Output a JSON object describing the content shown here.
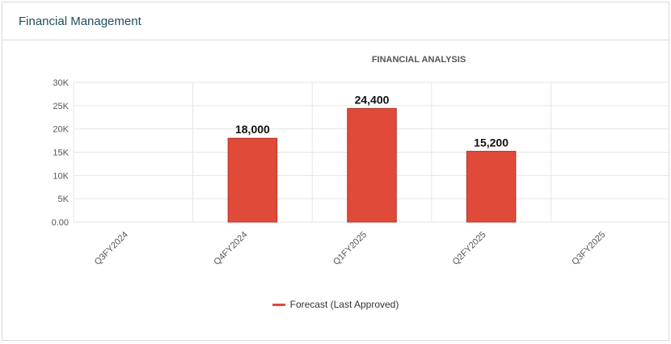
{
  "panel": {
    "title": "Financial Management"
  },
  "chart_data": {
    "type": "bar",
    "title": "FINANCIAL ANALYSIS",
    "categories": [
      "Q3FY2024",
      "Q4FY2024",
      "Q1FY2025",
      "Q2FY2025",
      "Q3FY2025"
    ],
    "series": [
      {
        "name": "Forecast (Last Approved)",
        "values": [
          null,
          18000,
          24400,
          15200,
          null
        ],
        "color": "#e04a39"
      }
    ],
    "data_labels": [
      "",
      "18,000",
      "24,400",
      "15,200",
      ""
    ],
    "yticks": [
      "0.00",
      "5K",
      "10K",
      "15K",
      "20K",
      "25K",
      "30K"
    ],
    "ylim": [
      0,
      30000
    ],
    "grid": true,
    "legend_position": "bottom"
  }
}
